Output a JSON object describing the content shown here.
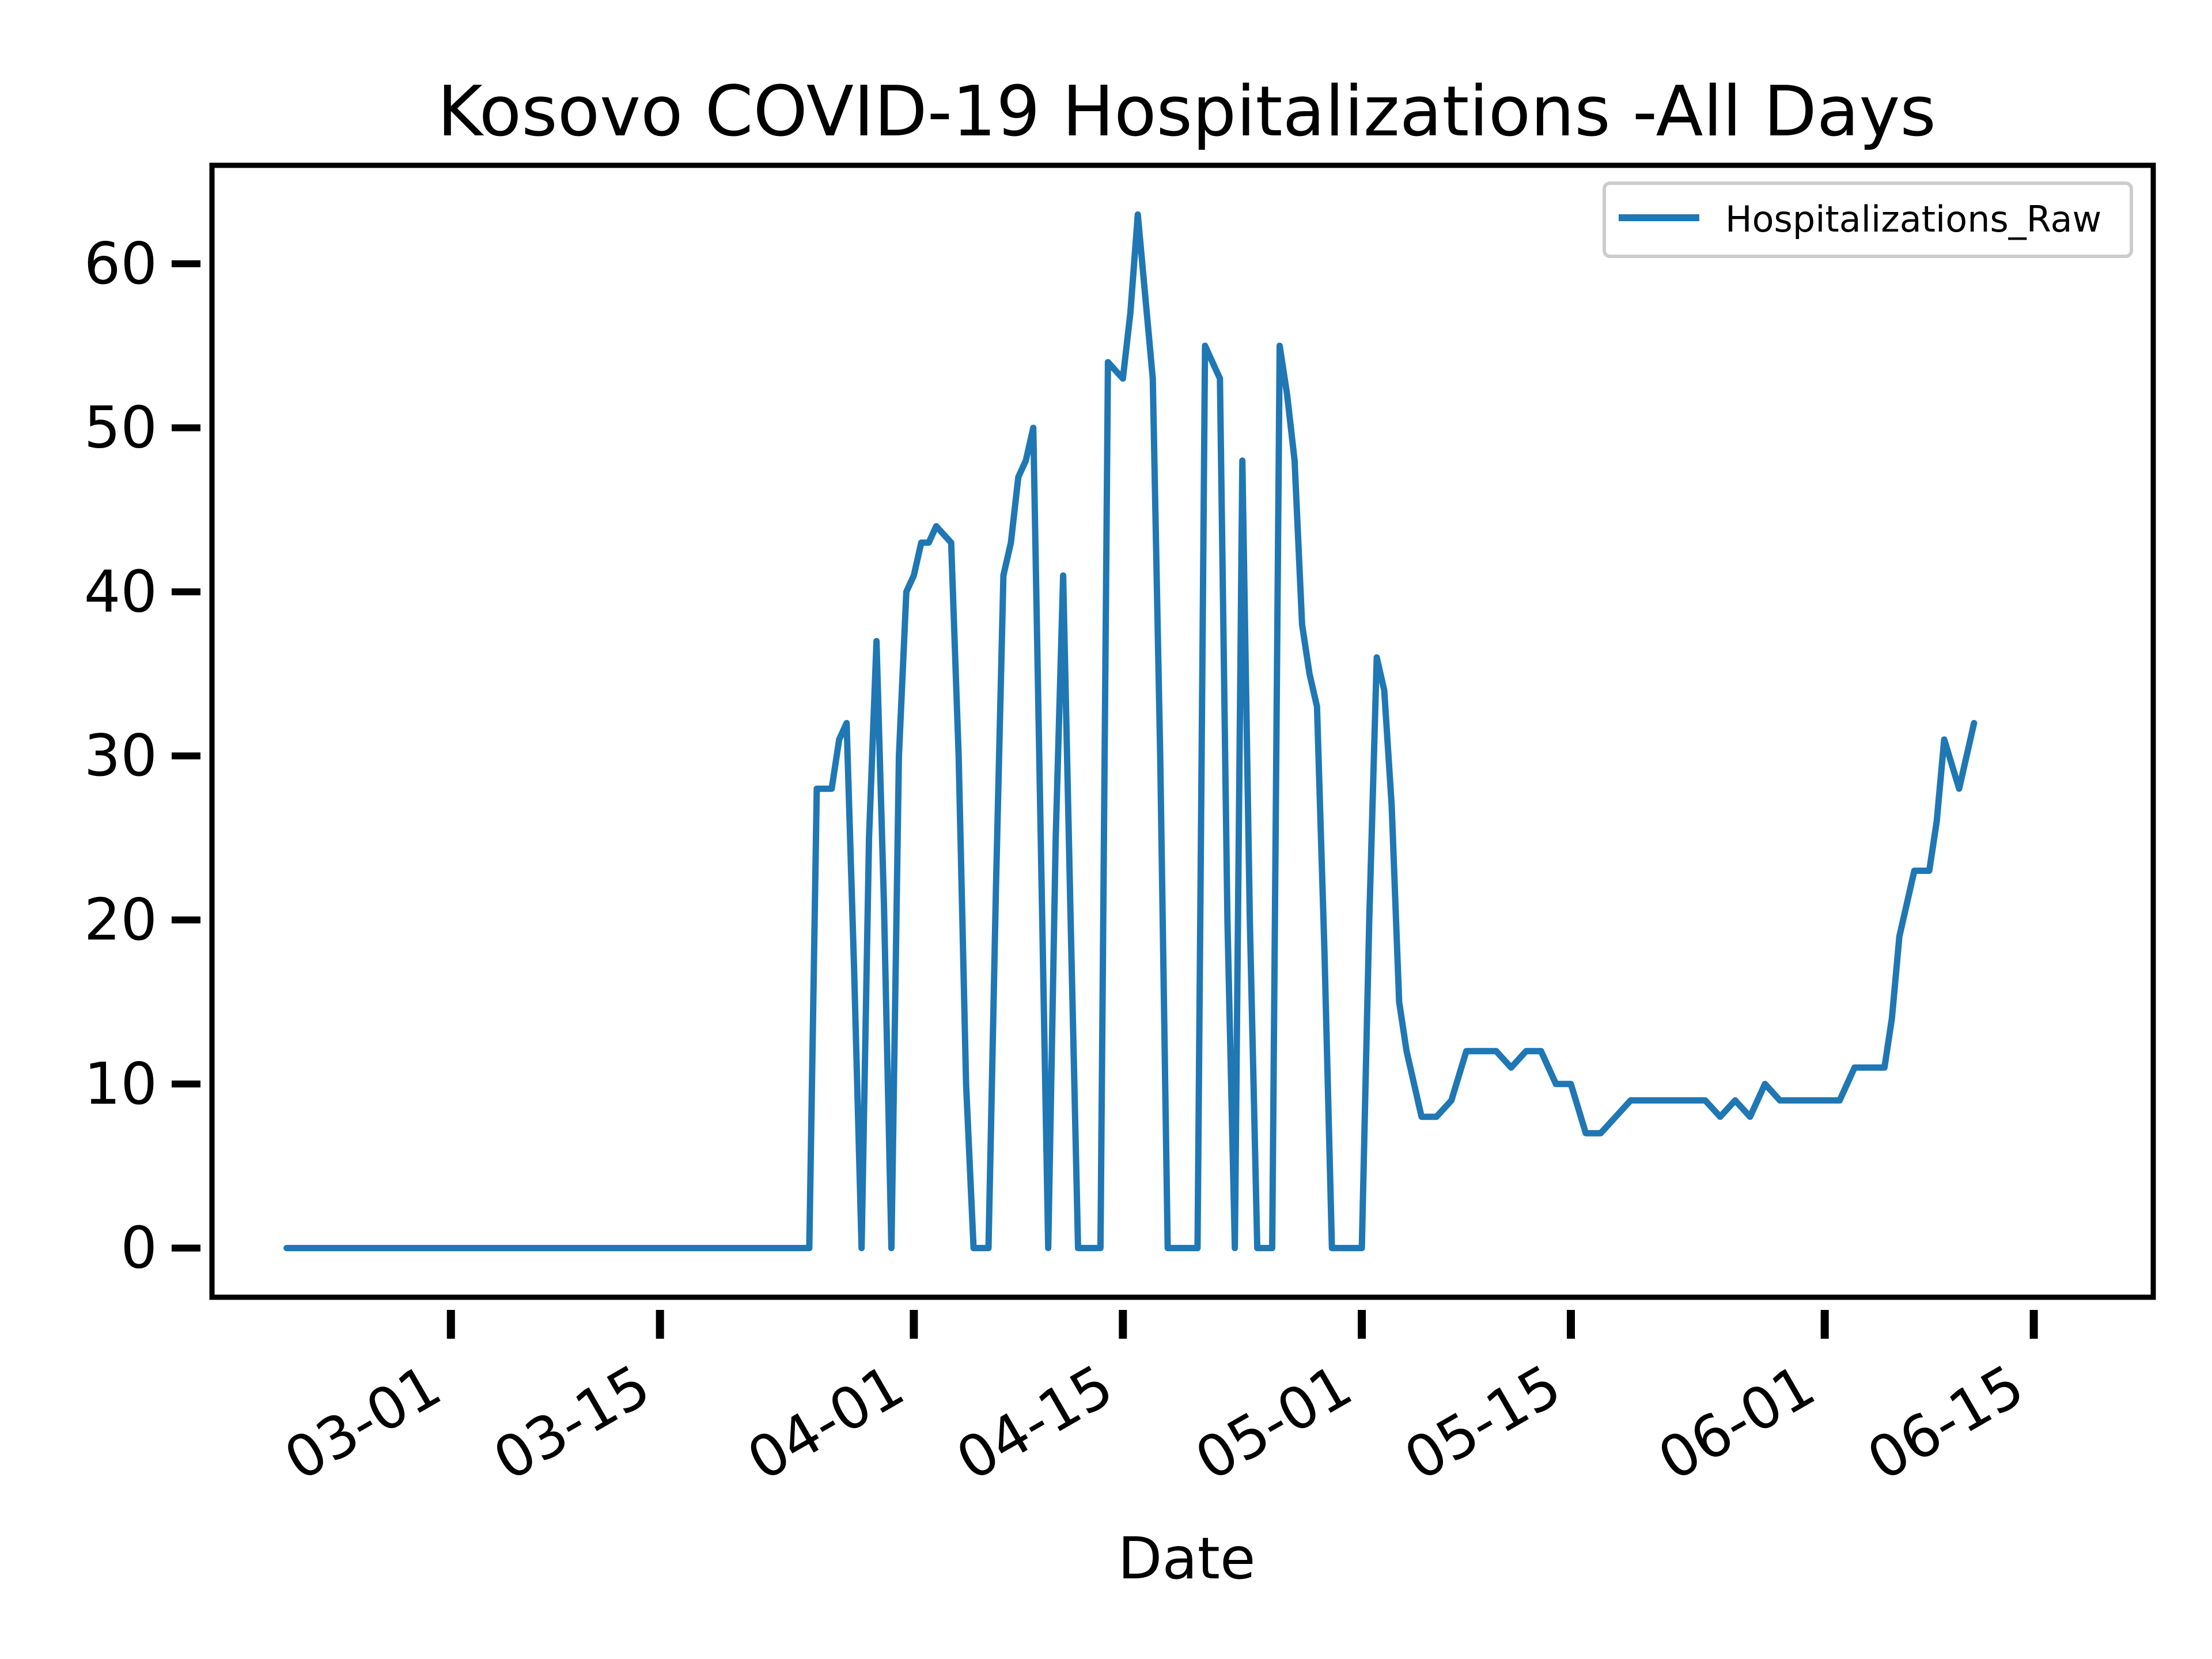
{
  "chart_data": {
    "type": "line",
    "title": "Kosovo COVID-19 Hospitalizations -All Days",
    "xlabel": "Date",
    "ylabel": "",
    "x_axis": {
      "kind": "date",
      "range": [
        "2020-02-14",
        "2020-06-23"
      ],
      "ticks": [
        {
          "date": "2020-03-01",
          "label": "03-01"
        },
        {
          "date": "2020-03-15",
          "label": "03-15"
        },
        {
          "date": "2020-04-01",
          "label": "04-01"
        },
        {
          "date": "2020-04-15",
          "label": "04-15"
        },
        {
          "date": "2020-05-01",
          "label": "05-01"
        },
        {
          "date": "2020-05-15",
          "label": "05-15"
        },
        {
          "date": "2020-06-01",
          "label": "06-01"
        },
        {
          "date": "2020-06-15",
          "label": "06-15"
        }
      ]
    },
    "y_axis": {
      "range": [
        -3,
        66
      ],
      "ticks": [
        0,
        10,
        20,
        30,
        40,
        50,
        60
      ]
    },
    "grid": false,
    "legend": {
      "position": "top-right",
      "entries": [
        "Hospitalizations_Raw"
      ]
    },
    "series": [
      {
        "name": "Hospitalizations_Raw",
        "color": "#1f77b4",
        "points": [
          [
            "2020-02-19",
            0
          ],
          [
            "2020-02-21",
            0
          ],
          [
            "2020-02-24",
            0
          ],
          [
            "2020-02-27",
            0
          ],
          [
            "2020-03-01",
            0
          ],
          [
            "2020-03-04",
            0
          ],
          [
            "2020-03-07",
            0
          ],
          [
            "2020-03-10",
            0
          ],
          [
            "2020-03-13",
            0
          ],
          [
            "2020-03-16",
            0
          ],
          [
            "2020-03-19",
            0
          ],
          [
            "2020-03-22",
            0
          ],
          [
            "2020-03-24",
            0
          ],
          [
            "2020-03-25",
            0
          ],
          [
            "2020-03-25T12",
            28
          ],
          [
            "2020-03-26",
            28
          ],
          [
            "2020-03-26T12",
            28
          ],
          [
            "2020-03-27",
            31
          ],
          [
            "2020-03-27T12",
            32
          ],
          [
            "2020-03-28",
            17
          ],
          [
            "2020-03-28T12",
            0
          ],
          [
            "2020-03-29",
            25
          ],
          [
            "2020-03-29T12",
            37
          ],
          [
            "2020-03-30",
            21
          ],
          [
            "2020-03-30T12",
            0
          ],
          [
            "2020-03-31",
            30
          ],
          [
            "2020-03-31T12",
            40
          ],
          [
            "2020-04-01",
            41
          ],
          [
            "2020-04-01T12",
            43
          ],
          [
            "2020-04-02",
            43
          ],
          [
            "2020-04-02T12",
            44
          ],
          [
            "2020-04-03",
            43.5
          ],
          [
            "2020-04-03T12",
            43
          ],
          [
            "2020-04-04",
            30
          ],
          [
            "2020-04-04T12",
            10
          ],
          [
            "2020-04-05",
            0
          ],
          [
            "2020-04-06",
            0
          ],
          [
            "2020-04-06T12",
            22
          ],
          [
            "2020-04-07",
            41
          ],
          [
            "2020-04-07T12",
            43
          ],
          [
            "2020-04-08",
            47
          ],
          [
            "2020-04-08T12",
            48
          ],
          [
            "2020-04-09",
            50
          ],
          [
            "2020-04-09T12",
            25
          ],
          [
            "2020-04-10",
            0
          ],
          [
            "2020-04-10T12",
            25
          ],
          [
            "2020-04-11",
            41
          ],
          [
            "2020-04-11T12",
            20
          ],
          [
            "2020-04-12",
            0
          ],
          [
            "2020-04-13",
            0
          ],
          [
            "2020-04-13T12",
            0
          ],
          [
            "2020-04-14",
            54
          ],
          [
            "2020-04-14T12",
            53.5
          ],
          [
            "2020-04-15",
            53
          ],
          [
            "2020-04-15T12",
            57
          ],
          [
            "2020-04-16",
            63
          ],
          [
            "2020-04-16T12",
            58
          ],
          [
            "2020-04-17",
            53
          ],
          [
            "2020-04-17T12",
            30
          ],
          [
            "2020-04-18",
            0
          ],
          [
            "2020-04-19",
            0
          ],
          [
            "2020-04-20",
            0
          ],
          [
            "2020-04-20T12",
            55
          ],
          [
            "2020-04-21",
            54
          ],
          [
            "2020-04-21T12",
            53
          ],
          [
            "2020-04-22",
            20
          ],
          [
            "2020-04-22T12",
            0
          ],
          [
            "2020-04-23",
            48
          ],
          [
            "2020-04-23T12",
            20
          ],
          [
            "2020-04-24",
            0
          ],
          [
            "2020-04-25",
            0
          ],
          [
            "2020-04-25T12",
            55
          ],
          [
            "2020-04-26",
            52
          ],
          [
            "2020-04-26T12",
            48
          ],
          [
            "2020-04-27",
            38
          ],
          [
            "2020-04-27T12",
            35
          ],
          [
            "2020-04-28",
            33
          ],
          [
            "2020-04-28T12",
            18
          ],
          [
            "2020-04-29",
            0
          ],
          [
            "2020-04-30",
            0
          ],
          [
            "2020-05-01",
            0
          ],
          [
            "2020-05-01T12",
            20
          ],
          [
            "2020-05-02",
            36
          ],
          [
            "2020-05-02T12",
            34
          ],
          [
            "2020-05-03",
            27
          ],
          [
            "2020-05-03T12",
            15
          ],
          [
            "2020-05-04",
            12
          ],
          [
            "2020-05-04T12",
            10
          ],
          [
            "2020-05-05",
            8
          ],
          [
            "2020-05-06",
            8
          ],
          [
            "2020-05-07",
            9
          ],
          [
            "2020-05-08",
            12
          ],
          [
            "2020-05-09",
            12
          ],
          [
            "2020-05-10",
            12
          ],
          [
            "2020-05-11",
            11
          ],
          [
            "2020-05-12",
            12
          ],
          [
            "2020-05-13",
            12
          ],
          [
            "2020-05-14",
            10
          ],
          [
            "2020-05-15",
            10
          ],
          [
            "2020-05-16",
            7
          ],
          [
            "2020-05-17",
            7
          ],
          [
            "2020-05-18",
            8
          ],
          [
            "2020-05-19",
            9
          ],
          [
            "2020-05-20",
            9
          ],
          [
            "2020-05-21",
            9
          ],
          [
            "2020-05-22",
            9
          ],
          [
            "2020-05-23",
            9
          ],
          [
            "2020-05-24",
            9
          ],
          [
            "2020-05-25",
            8
          ],
          [
            "2020-05-26",
            9
          ],
          [
            "2020-05-27",
            8
          ],
          [
            "2020-05-28",
            10
          ],
          [
            "2020-05-29",
            9
          ],
          [
            "2020-05-30",
            9
          ],
          [
            "2020-05-31",
            9
          ],
          [
            "2020-06-01",
            9
          ],
          [
            "2020-06-02",
            9
          ],
          [
            "2020-06-03",
            11
          ],
          [
            "2020-06-04",
            11
          ],
          [
            "2020-06-05",
            11
          ],
          [
            "2020-06-05T12",
            14
          ],
          [
            "2020-06-06",
            19
          ],
          [
            "2020-06-06T12",
            21
          ],
          [
            "2020-06-07",
            23
          ],
          [
            "2020-06-08",
            23
          ],
          [
            "2020-06-08T12",
            26
          ],
          [
            "2020-06-09",
            31
          ],
          [
            "2020-06-10",
            28
          ],
          [
            "2020-06-10T12",
            30
          ],
          [
            "2020-06-11",
            32
          ]
        ]
      }
    ]
  }
}
